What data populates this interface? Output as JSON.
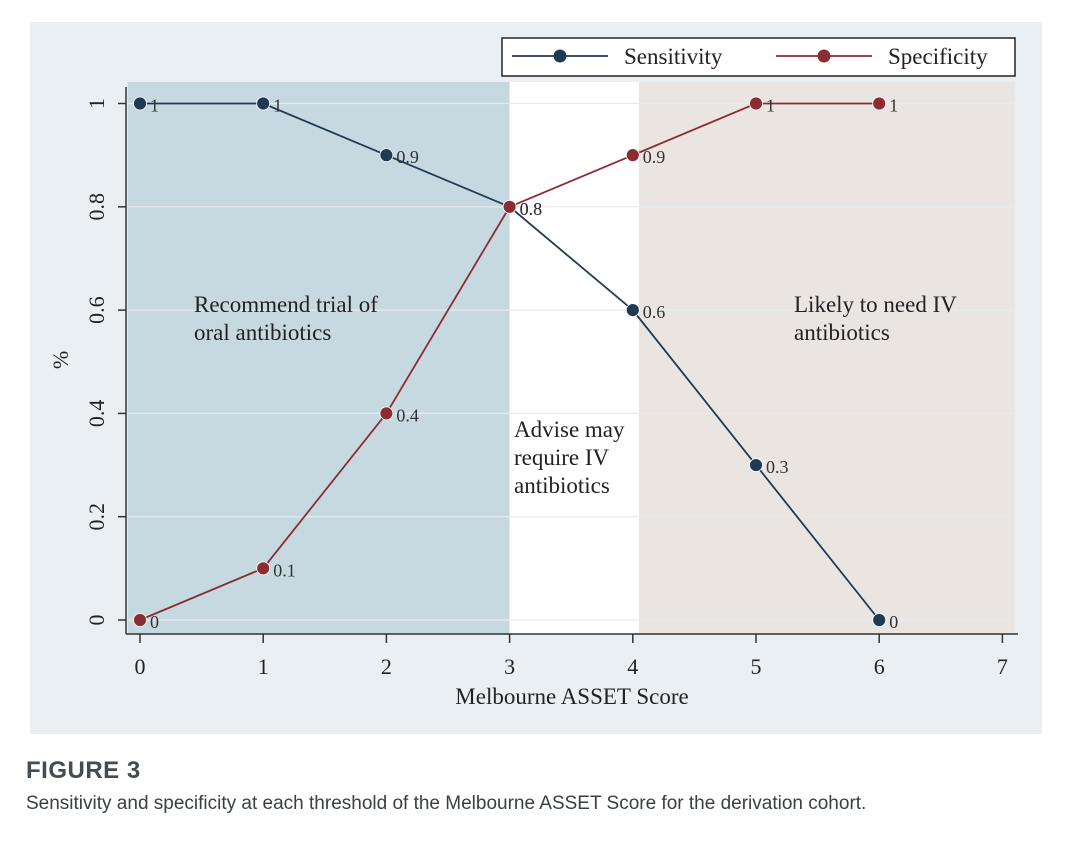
{
  "figure": {
    "label": "FIGURE 3",
    "caption": "Sensitivity and specificity at each threshold of the Melbourne ASSET Score for the derivation cohort."
  },
  "chart_data": {
    "type": "line",
    "xlabel": "Melbourne ASSET Score",
    "ylabel": "%",
    "xlim": [
      0,
      7
    ],
    "ylim": [
      0,
      1
    ],
    "x_ticks": [
      "0",
      "1",
      "2",
      "3",
      "4",
      "5",
      "6",
      "7"
    ],
    "y_ticks": [
      "0",
      "0.2",
      "0.4",
      "0.6",
      "0.8",
      "1"
    ],
    "grid": true,
    "legend_position": "top-right",
    "series": [
      {
        "name": "Sensitivity",
        "x": [
          0,
          1,
          2,
          3,
          4,
          5,
          6
        ],
        "values": [
          1,
          1,
          0.9,
          0.8,
          0.6,
          0.3,
          0
        ],
        "labels": [
          "1",
          "1",
          "0.9",
          "0.8",
          "0.6",
          "0.3",
          "0"
        ],
        "color": "#1f3a52"
      },
      {
        "name": "Specificity",
        "x": [
          0,
          1,
          2,
          3,
          4,
          5,
          6
        ],
        "values": [
          0,
          0.1,
          0.4,
          0.8,
          0.9,
          1,
          1
        ],
        "labels": [
          "0",
          "0.1",
          "0.4",
          "0.8",
          "0.9",
          "1",
          "1"
        ],
        "color": "#8b2c35"
      }
    ],
    "regions": [
      {
        "x_from": -0.1,
        "x_to": 3,
        "color": "#c6d9e1",
        "text": [
          "Recommend trial of",
          "oral antibiotics"
        ]
      },
      {
        "x_from": 3,
        "x_to": 4.05,
        "color": "#ffffff",
        "text": [
          "Advise may",
          "require IV",
          "antibiotics"
        ]
      },
      {
        "x_from": 4.05,
        "x_to": 7.1,
        "color": "#ebe5e2",
        "text": [
          "Likely to need IV",
          "antibiotics"
        ]
      }
    ]
  }
}
